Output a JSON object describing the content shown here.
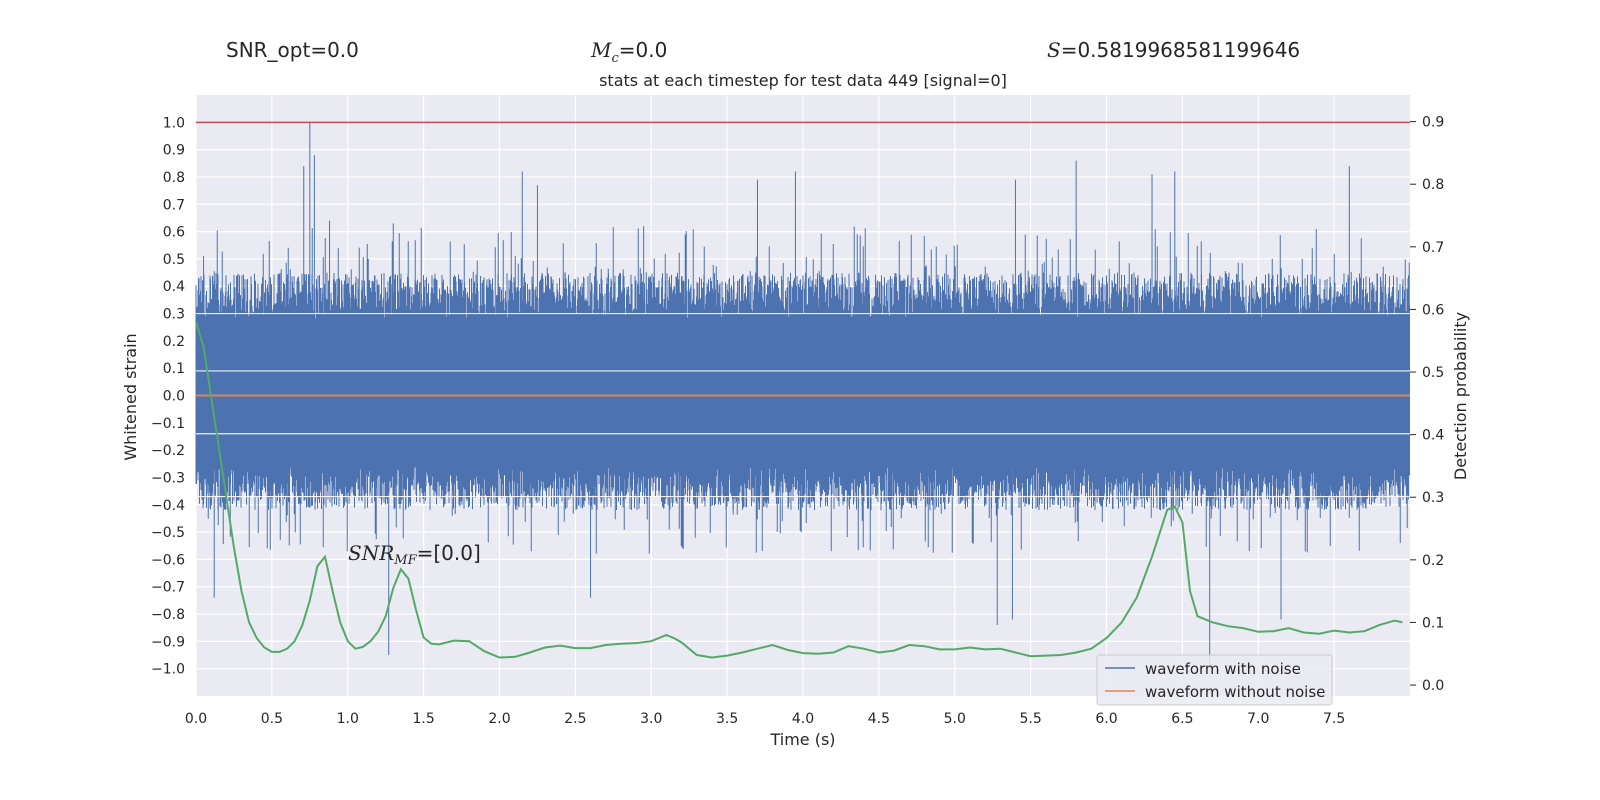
{
  "stats": {
    "snr_opt": "SNR_opt=0.0",
    "mc_symbol": "M",
    "mc_sub": "c",
    "mc_value": "=0.0",
    "s_symbol": "S",
    "s_value": "=0.5819968581199646"
  },
  "chart_data": {
    "type": "line",
    "title": "stats at each timestep for test data 449 [signal=0]",
    "xlabel": "Time (s)",
    "ylabel": "Whitened strain",
    "y2label": "Detection probability",
    "xlim": [
      0,
      8.0
    ],
    "ylim": [
      -1.1,
      1.1
    ],
    "y2lim": [
      -0.0175,
      0.9425
    ],
    "xticks": [
      "0.0",
      "0.5",
      "1.0",
      "1.5",
      "2.0",
      "2.5",
      "3.0",
      "3.5",
      "4.0",
      "4.5",
      "5.0",
      "5.5",
      "6.0",
      "6.5",
      "7.0",
      "7.5"
    ],
    "yticks": [
      "1.0",
      "0.9",
      "0.8",
      "0.7",
      "0.6",
      "0.5",
      "0.4",
      "0.3",
      "0.2",
      "0.1",
      "0.0",
      "−0.1",
      "−0.2",
      "−0.3",
      "−0.4",
      "−0.5",
      "−0.6",
      "−0.7",
      "−0.8",
      "−0.9",
      "−1.0"
    ],
    "y2ticks": [
      "0.0",
      "0.1",
      "0.2",
      "0.3",
      "0.4",
      "0.5",
      "0.6",
      "0.7",
      "0.8",
      "0.9"
    ],
    "threshold": {
      "value": 1.0,
      "color": "#c44e52"
    },
    "annotation": {
      "text_main": "SNR",
      "text_sub": "MF",
      "text_rest": "=[0.0]",
      "x": 1.0,
      "y": -0.57
    },
    "grid": true,
    "legend": {
      "placement": "bottom-right"
    },
    "series": [
      {
        "name": "waveform with noise",
        "color": "#4c72b0",
        "axis": "left",
        "kind": "noise",
        "envelope_peaks": [
          {
            "x": 0.05,
            "y": 0.51
          },
          {
            "x": 0.71,
            "y": 0.84
          },
          {
            "x": 0.75,
            "y": 1.0
          },
          {
            "x": 0.78,
            "y": 0.88
          },
          {
            "x": 0.88,
            "y": 0.64
          },
          {
            "x": 1.3,
            "y": 0.63
          },
          {
            "x": 2.15,
            "y": 0.82
          },
          {
            "x": 2.25,
            "y": 0.77
          },
          {
            "x": 2.95,
            "y": 0.62
          },
          {
            "x": 3.7,
            "y": 0.79
          },
          {
            "x": 3.95,
            "y": 0.82
          },
          {
            "x": 5.4,
            "y": 0.79
          },
          {
            "x": 5.8,
            "y": 0.86
          },
          {
            "x": 6.3,
            "y": 0.81
          },
          {
            "x": 6.45,
            "y": 0.82
          },
          {
            "x": 7.6,
            "y": 0.84
          }
        ],
        "envelope_troughs": [
          {
            "x": 0.12,
            "y": -0.74
          },
          {
            "x": 1.27,
            "y": -0.95
          },
          {
            "x": 2.6,
            "y": -0.74
          },
          {
            "x": 5.28,
            "y": -0.84
          },
          {
            "x": 5.38,
            "y": -0.82
          },
          {
            "x": 6.68,
            "y": -1.0
          },
          {
            "x": 7.15,
            "y": -0.82
          }
        ]
      },
      {
        "name": "waveform without noise",
        "color": "#dd8452",
        "axis": "left",
        "kind": "line",
        "x": [
          0,
          8.0
        ],
        "y": [
          0.0,
          0.0
        ]
      },
      {
        "name": "",
        "color": "#55a868",
        "axis": "right",
        "kind": "line",
        "x": [
          0.0,
          0.05,
          0.1,
          0.15,
          0.2,
          0.25,
          0.3,
          0.35,
          0.4,
          0.45,
          0.5,
          0.55,
          0.6,
          0.65,
          0.7,
          0.75,
          0.8,
          0.85,
          0.9,
          0.95,
          1.0,
          1.05,
          1.1,
          1.15,
          1.2,
          1.25,
          1.3,
          1.35,
          1.4,
          1.45,
          1.5,
          1.55,
          1.6,
          1.7,
          1.8,
          1.9,
          2.0,
          2.1,
          2.2,
          2.3,
          2.4,
          2.5,
          2.6,
          2.7,
          2.8,
          2.9,
          3.0,
          3.1,
          3.15,
          3.2,
          3.3,
          3.4,
          3.5,
          3.6,
          3.7,
          3.8,
          3.9,
          4.0,
          4.1,
          4.2,
          4.3,
          4.4,
          4.5,
          4.6,
          4.7,
          4.8,
          4.9,
          5.0,
          5.1,
          5.2,
          5.3,
          5.4,
          5.5,
          5.6,
          5.7,
          5.8,
          5.9,
          6.0,
          6.1,
          6.2,
          6.3,
          6.4,
          6.45,
          6.5,
          6.55,
          6.6,
          6.7,
          6.8,
          6.9,
          7.0,
          7.1,
          7.2,
          7.3,
          7.4,
          7.5,
          7.6,
          7.7,
          7.8,
          7.9,
          7.95
        ],
        "y": [
          0.58,
          0.54,
          0.46,
          0.38,
          0.3,
          0.22,
          0.15,
          0.1,
          0.075,
          0.06,
          0.053,
          0.053,
          0.058,
          0.07,
          0.095,
          0.135,
          0.19,
          0.205,
          0.15,
          0.1,
          0.07,
          0.058,
          0.061,
          0.07,
          0.085,
          0.11,
          0.155,
          0.185,
          0.17,
          0.12,
          0.076,
          0.066,
          0.065,
          0.071,
          0.07,
          0.054,
          0.044,
          0.045,
          0.052,
          0.06,
          0.063,
          0.059,
          0.059,
          0.064,
          0.066,
          0.067,
          0.07,
          0.08,
          0.075,
          0.068,
          0.048,
          0.044,
          0.047,
          0.052,
          0.058,
          0.064,
          0.056,
          0.051,
          0.05,
          0.052,
          0.062,
          0.058,
          0.052,
          0.055,
          0.064,
          0.062,
          0.057,
          0.057,
          0.06,
          0.057,
          0.058,
          0.052,
          0.046,
          0.047,
          0.048,
          0.052,
          0.058,
          0.075,
          0.1,
          0.14,
          0.205,
          0.28,
          0.285,
          0.26,
          0.15,
          0.11,
          0.1,
          0.094,
          0.091,
          0.085,
          0.086,
          0.091,
          0.084,
          0.082,
          0.087,
          0.084,
          0.086,
          0.096,
          0.103,
          0.1
        ]
      }
    ]
  }
}
